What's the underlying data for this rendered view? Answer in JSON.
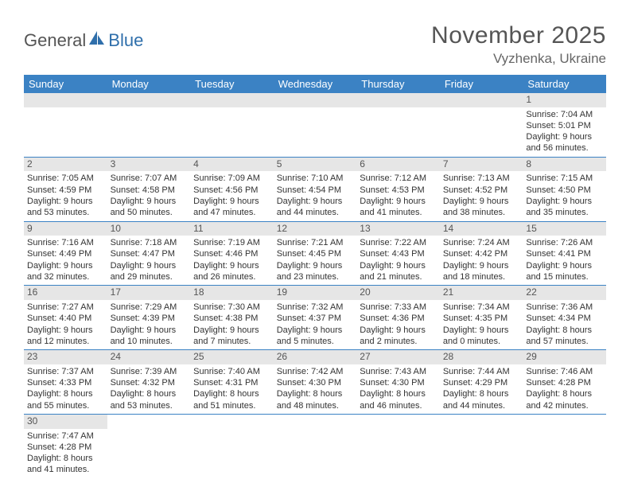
{
  "brand": {
    "part1": "General",
    "part2": "Blue",
    "color1": "#6b6b6b",
    "color2": "#2f6fab",
    "sail_color": "#2f6fab"
  },
  "title": "November 2025",
  "location": "Vyzhenka, Ukraine",
  "colors": {
    "header_bg": "#3b82c4",
    "header_text": "#ffffff",
    "rule": "#3b82c4",
    "daynum_bg": "#e6e6e6",
    "text": "#333333"
  },
  "day_labels": [
    "Sunday",
    "Monday",
    "Tuesday",
    "Wednesday",
    "Thursday",
    "Friday",
    "Saturday"
  ],
  "weeks": [
    [
      null,
      null,
      null,
      null,
      null,
      null,
      {
        "n": "1",
        "sr": "Sunrise: 7:04 AM",
        "ss": "Sunset: 5:01 PM",
        "d1": "Daylight: 9 hours",
        "d2": "and 56 minutes."
      }
    ],
    [
      {
        "n": "2",
        "sr": "Sunrise: 7:05 AM",
        "ss": "Sunset: 4:59 PM",
        "d1": "Daylight: 9 hours",
        "d2": "and 53 minutes."
      },
      {
        "n": "3",
        "sr": "Sunrise: 7:07 AM",
        "ss": "Sunset: 4:58 PM",
        "d1": "Daylight: 9 hours",
        "d2": "and 50 minutes."
      },
      {
        "n": "4",
        "sr": "Sunrise: 7:09 AM",
        "ss": "Sunset: 4:56 PM",
        "d1": "Daylight: 9 hours",
        "d2": "and 47 minutes."
      },
      {
        "n": "5",
        "sr": "Sunrise: 7:10 AM",
        "ss": "Sunset: 4:54 PM",
        "d1": "Daylight: 9 hours",
        "d2": "and 44 minutes."
      },
      {
        "n": "6",
        "sr": "Sunrise: 7:12 AM",
        "ss": "Sunset: 4:53 PM",
        "d1": "Daylight: 9 hours",
        "d2": "and 41 minutes."
      },
      {
        "n": "7",
        "sr": "Sunrise: 7:13 AM",
        "ss": "Sunset: 4:52 PM",
        "d1": "Daylight: 9 hours",
        "d2": "and 38 minutes."
      },
      {
        "n": "8",
        "sr": "Sunrise: 7:15 AM",
        "ss": "Sunset: 4:50 PM",
        "d1": "Daylight: 9 hours",
        "d2": "and 35 minutes."
      }
    ],
    [
      {
        "n": "9",
        "sr": "Sunrise: 7:16 AM",
        "ss": "Sunset: 4:49 PM",
        "d1": "Daylight: 9 hours",
        "d2": "and 32 minutes."
      },
      {
        "n": "10",
        "sr": "Sunrise: 7:18 AM",
        "ss": "Sunset: 4:47 PM",
        "d1": "Daylight: 9 hours",
        "d2": "and 29 minutes."
      },
      {
        "n": "11",
        "sr": "Sunrise: 7:19 AM",
        "ss": "Sunset: 4:46 PM",
        "d1": "Daylight: 9 hours",
        "d2": "and 26 minutes."
      },
      {
        "n": "12",
        "sr": "Sunrise: 7:21 AM",
        "ss": "Sunset: 4:45 PM",
        "d1": "Daylight: 9 hours",
        "d2": "and 23 minutes."
      },
      {
        "n": "13",
        "sr": "Sunrise: 7:22 AM",
        "ss": "Sunset: 4:43 PM",
        "d1": "Daylight: 9 hours",
        "d2": "and 21 minutes."
      },
      {
        "n": "14",
        "sr": "Sunrise: 7:24 AM",
        "ss": "Sunset: 4:42 PM",
        "d1": "Daylight: 9 hours",
        "d2": "and 18 minutes."
      },
      {
        "n": "15",
        "sr": "Sunrise: 7:26 AM",
        "ss": "Sunset: 4:41 PM",
        "d1": "Daylight: 9 hours",
        "d2": "and 15 minutes."
      }
    ],
    [
      {
        "n": "16",
        "sr": "Sunrise: 7:27 AM",
        "ss": "Sunset: 4:40 PM",
        "d1": "Daylight: 9 hours",
        "d2": "and 12 minutes."
      },
      {
        "n": "17",
        "sr": "Sunrise: 7:29 AM",
        "ss": "Sunset: 4:39 PM",
        "d1": "Daylight: 9 hours",
        "d2": "and 10 minutes."
      },
      {
        "n": "18",
        "sr": "Sunrise: 7:30 AM",
        "ss": "Sunset: 4:38 PM",
        "d1": "Daylight: 9 hours",
        "d2": "and 7 minutes."
      },
      {
        "n": "19",
        "sr": "Sunrise: 7:32 AM",
        "ss": "Sunset: 4:37 PM",
        "d1": "Daylight: 9 hours",
        "d2": "and 5 minutes."
      },
      {
        "n": "20",
        "sr": "Sunrise: 7:33 AM",
        "ss": "Sunset: 4:36 PM",
        "d1": "Daylight: 9 hours",
        "d2": "and 2 minutes."
      },
      {
        "n": "21",
        "sr": "Sunrise: 7:34 AM",
        "ss": "Sunset: 4:35 PM",
        "d1": "Daylight: 9 hours",
        "d2": "and 0 minutes."
      },
      {
        "n": "22",
        "sr": "Sunrise: 7:36 AM",
        "ss": "Sunset: 4:34 PM",
        "d1": "Daylight: 8 hours",
        "d2": "and 57 minutes."
      }
    ],
    [
      {
        "n": "23",
        "sr": "Sunrise: 7:37 AM",
        "ss": "Sunset: 4:33 PM",
        "d1": "Daylight: 8 hours",
        "d2": "and 55 minutes."
      },
      {
        "n": "24",
        "sr": "Sunrise: 7:39 AM",
        "ss": "Sunset: 4:32 PM",
        "d1": "Daylight: 8 hours",
        "d2": "and 53 minutes."
      },
      {
        "n": "25",
        "sr": "Sunrise: 7:40 AM",
        "ss": "Sunset: 4:31 PM",
        "d1": "Daylight: 8 hours",
        "d2": "and 51 minutes."
      },
      {
        "n": "26",
        "sr": "Sunrise: 7:42 AM",
        "ss": "Sunset: 4:30 PM",
        "d1": "Daylight: 8 hours",
        "d2": "and 48 minutes."
      },
      {
        "n": "27",
        "sr": "Sunrise: 7:43 AM",
        "ss": "Sunset: 4:30 PM",
        "d1": "Daylight: 8 hours",
        "d2": "and 46 minutes."
      },
      {
        "n": "28",
        "sr": "Sunrise: 7:44 AM",
        "ss": "Sunset: 4:29 PM",
        "d1": "Daylight: 8 hours",
        "d2": "and 44 minutes."
      },
      {
        "n": "29",
        "sr": "Sunrise: 7:46 AM",
        "ss": "Sunset: 4:28 PM",
        "d1": "Daylight: 8 hours",
        "d2": "and 42 minutes."
      }
    ],
    [
      {
        "n": "30",
        "sr": "Sunrise: 7:47 AM",
        "ss": "Sunset: 4:28 PM",
        "d1": "Daylight: 8 hours",
        "d2": "and 41 minutes."
      },
      null,
      null,
      null,
      null,
      null,
      null
    ]
  ]
}
